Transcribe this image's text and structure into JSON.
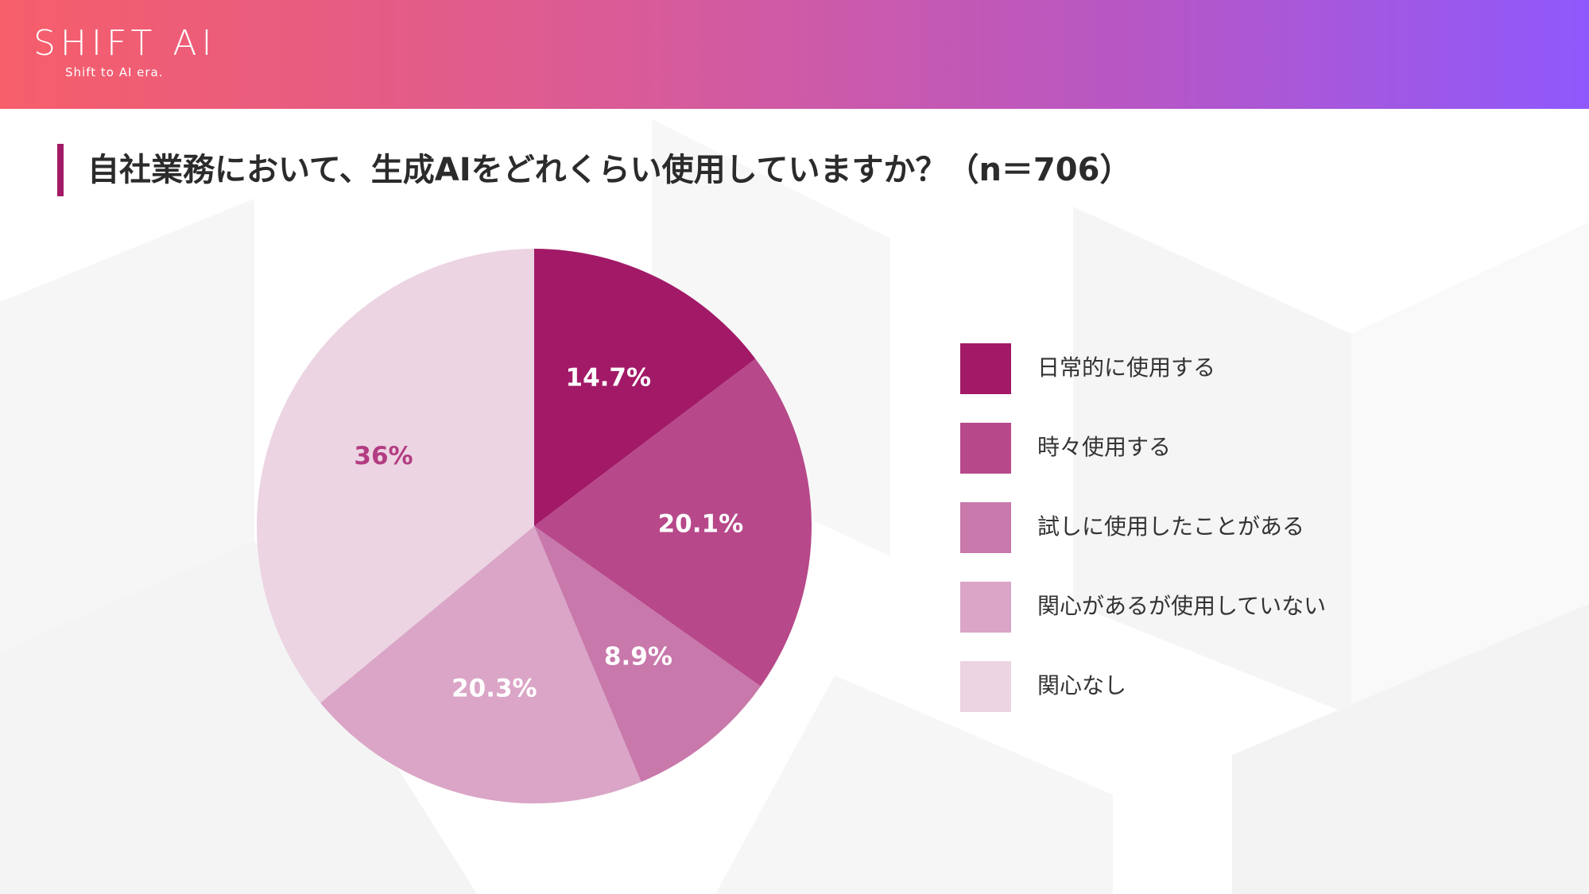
{
  "brand": {
    "name": "SHIFT AI",
    "tagline": "Shift to AI era."
  },
  "title": "自社業務において、生成AIをどれくらい使用していますか？（n＝706）",
  "chart_data": {
    "type": "pie",
    "categories": [
      "日常的に使用する",
      "時々使用する",
      "試しに使用したことがある",
      "関心があるが使用していない",
      "関心なし"
    ],
    "values": [
      14.7,
      20.1,
      8.9,
      20.3,
      36
    ],
    "labels": [
      "14.7%",
      "20.1%",
      "8.9%",
      "20.3%",
      "36%"
    ],
    "colors": [
      "#a21a67",
      "#b7488a",
      "#c878ab",
      "#daa5c6",
      "#ecd4e2"
    ],
    "label_colors": [
      "#ffffff",
      "#ffffff",
      "#ffffff",
      "#ffffff",
      "#b23c82"
    ],
    "legend_position": "right"
  }
}
